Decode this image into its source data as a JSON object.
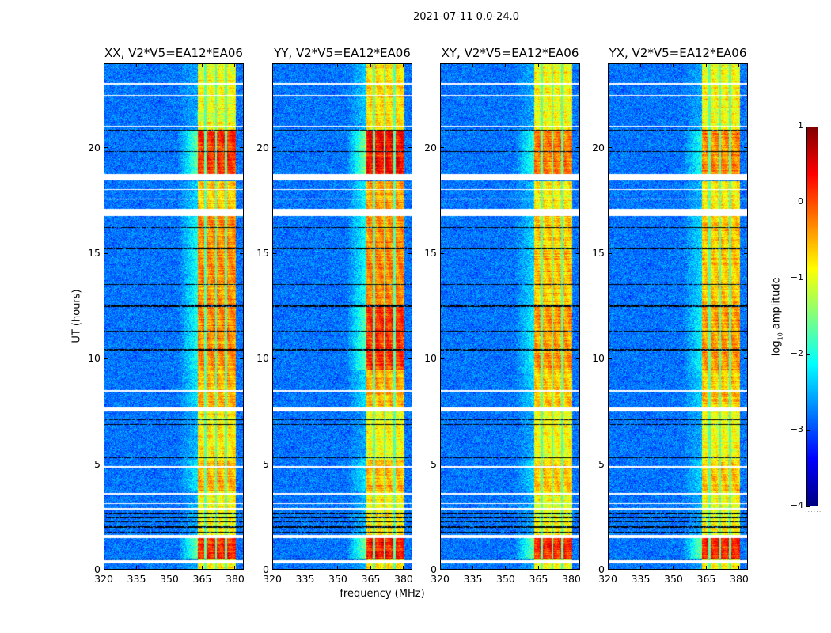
{
  "suptitle": "2021-07-11 0.0-24.0",
  "ylabel": "UT (hours)",
  "xlabel": "frequency (MHz)",
  "colorbar": {
    "label_main": "log",
    "label_sub": "10",
    "label_rest": " amplitude",
    "range": [
      -4,
      1
    ],
    "ticks": [
      1,
      0,
      -1,
      -2,
      -3,
      -4
    ],
    "tick_labels": [
      "1",
      "0",
      "−1",
      "−2",
      "−3",
      "−4"
    ],
    "colormap": "jet",
    "footer": "......"
  },
  "chart_data": {
    "type": "heatmap",
    "x_range": [
      320,
      384
    ],
    "y_range": [
      0,
      24
    ],
    "x_ticks": [
      320,
      335,
      350,
      365,
      380
    ],
    "x_tick_labels": [
      "320",
      "335",
      "350",
      "365",
      "380"
    ],
    "y_ticks": [
      0,
      5,
      10,
      15,
      20
    ],
    "y_tick_labels": [
      "0",
      "5",
      "10",
      "15",
      "20"
    ],
    "background_level": -2.8,
    "band_mhz": [
      363,
      380.5
    ],
    "band_gap_lines_mhz": [
      366.5,
      371.3,
      375.8
    ],
    "flagged_white_ut": [
      [
        0.3,
        0.45
      ],
      [
        1.5,
        1.65
      ],
      [
        2.85,
        2.92
      ],
      [
        3.1,
        3.15
      ],
      [
        3.55,
        3.62
      ],
      [
        4.85,
        4.9
      ],
      [
        7.5,
        7.7
      ],
      [
        8.45,
        8.5
      ],
      [
        16.75,
        17.1
      ],
      [
        17.55,
        17.6
      ],
      [
        18.0,
        18.05
      ],
      [
        18.45,
        18.75
      ],
      [
        21.0,
        21.05
      ],
      [
        22.45,
        22.5
      ],
      [
        23.0,
        23.05
      ]
    ],
    "flagged_black_ut": [
      [
        0.48,
        0.53
      ],
      [
        1.75,
        1.8
      ],
      [
        2.0,
        2.06
      ],
      [
        2.25,
        2.3
      ],
      [
        2.45,
        2.5
      ],
      [
        2.62,
        2.7
      ],
      [
        5.3,
        5.34
      ],
      [
        6.85,
        6.9
      ],
      [
        7.1,
        7.14
      ],
      [
        10.4,
        10.46
      ],
      [
        11.3,
        11.34
      ],
      [
        12.45,
        12.55
      ],
      [
        13.5,
        13.55
      ],
      [
        15.2,
        15.25
      ],
      [
        16.2,
        16.25
      ],
      [
        19.8,
        19.85
      ],
      [
        20.8,
        20.86
      ]
    ],
    "panels": [
      {
        "title": "XX, V2*V5=EA12*EA06",
        "segments": [
          [
            0,
            0.5,
            -0.9
          ],
          [
            0.5,
            1.5,
            0.2
          ],
          [
            1.5,
            3.7,
            -0.9
          ],
          [
            3.7,
            5.2,
            -0.5
          ],
          [
            5.2,
            7.5,
            -0.8
          ],
          [
            7.7,
            9.5,
            -0.5
          ],
          [
            9.5,
            12.5,
            -0.3
          ],
          [
            12.5,
            16.8,
            -0.3
          ],
          [
            17.1,
            18.4,
            -0.6
          ],
          [
            18.7,
            20.8,
            0.15
          ],
          [
            20.8,
            24,
            -0.9
          ]
        ]
      },
      {
        "title": "YY, V2*V5=EA12*EA06",
        "segments": [
          [
            0,
            0.5,
            -0.8
          ],
          [
            0.5,
            1.5,
            0.3
          ],
          [
            1.5,
            3.7,
            -0.8
          ],
          [
            3.7,
            5.2,
            -0.5
          ],
          [
            5.2,
            7.5,
            -0.9
          ],
          [
            7.7,
            9.5,
            -0.5
          ],
          [
            9.5,
            12.5,
            0.1
          ],
          [
            12.5,
            16.8,
            -0.3
          ],
          [
            17.1,
            18.4,
            -0.4
          ],
          [
            18.7,
            20.8,
            0.35
          ],
          [
            20.8,
            24,
            -0.7
          ]
        ]
      },
      {
        "title": "XY, V2*V5=EA12*EA06",
        "segments": [
          [
            0,
            0.5,
            -0.9
          ],
          [
            0.5,
            1.5,
            0.2
          ],
          [
            1.5,
            3.7,
            -0.9
          ],
          [
            3.7,
            5.2,
            -0.6
          ],
          [
            5.2,
            7.5,
            -0.9
          ],
          [
            7.7,
            9.5,
            -0.6
          ],
          [
            9.5,
            12.5,
            -0.4
          ],
          [
            12.5,
            16.8,
            -0.6
          ],
          [
            17.1,
            18.4,
            -0.8
          ],
          [
            18.7,
            20.8,
            -0.2
          ],
          [
            20.8,
            24,
            -0.9
          ]
        ]
      },
      {
        "title": "YX, V2*V5=EA12*EA06",
        "segments": [
          [
            0,
            0.5,
            -0.9
          ],
          [
            0.5,
            1.5,
            0.2
          ],
          [
            1.5,
            3.7,
            -0.9
          ],
          [
            3.7,
            5.2,
            -0.6
          ],
          [
            5.2,
            7.5,
            -0.9
          ],
          [
            7.7,
            9.5,
            -0.6
          ],
          [
            9.5,
            12.5,
            -0.4
          ],
          [
            12.5,
            16.8,
            -0.6
          ],
          [
            17.1,
            18.4,
            -0.8
          ],
          [
            18.7,
            20.8,
            -0.3
          ],
          [
            20.8,
            24,
            -0.9
          ]
        ]
      }
    ]
  }
}
